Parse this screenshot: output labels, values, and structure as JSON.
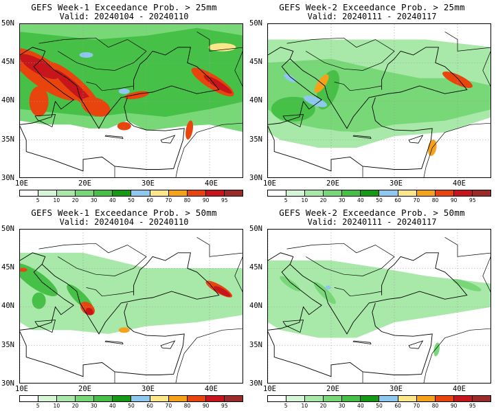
{
  "panels": [
    {
      "title": "GEFS Week-1 Exceedance Prob. > 25mm",
      "valid": "Valid: 20240104 - 20240110",
      "lat_labels": [
        "50N",
        "45N",
        "40N",
        "35N",
        "30N"
      ],
      "lon_labels": [
        "10E",
        "20E",
        "30E",
        "40E"
      ],
      "colorbar_labels": [
        "5",
        "10",
        "20",
        "30",
        "40",
        "50",
        "60",
        "70",
        "80",
        "90",
        "95"
      ]
    },
    {
      "title": "GEFS Week-2 Exceedance Prob. > 25mm",
      "valid": "Valid: 20240111 - 20240117",
      "lat_labels": [
        "50N",
        "45N",
        "40N",
        "35N",
        "30N"
      ],
      "lon_labels": [
        "10E",
        "20E",
        "30E",
        "40E"
      ],
      "colorbar_labels": [
        "5",
        "10",
        "20",
        "30",
        "40",
        "50",
        "60",
        "70",
        "80",
        "90",
        "95"
      ]
    },
    {
      "title": "GEFS Week-1 Exceedance Prob. > 50mm",
      "valid": "Valid: 20240104 - 20240110",
      "lat_labels": [
        "50N",
        "45N",
        "40N",
        "35N",
        "30N"
      ],
      "lon_labels": [
        "10E",
        "20E",
        "30E",
        "40E"
      ],
      "colorbar_labels": [
        "5",
        "10",
        "20",
        "30",
        "40",
        "50",
        "60",
        "70",
        "80",
        "90",
        "95"
      ]
    },
    {
      "title": "GEFS Week-2 Exceedance Prob. > 50mm",
      "valid": "Valid: 20240111 - 20240117",
      "lat_labels": [
        "50N",
        "45N",
        "40N",
        "35N",
        "30N"
      ],
      "lon_labels": [
        "10E",
        "20E",
        "30E",
        "40E"
      ],
      "colorbar_labels": [
        "5",
        "10",
        "20",
        "30",
        "40",
        "50",
        "60",
        "70",
        "80",
        "90",
        "95"
      ]
    }
  ],
  "colorbar_colors": [
    "#ffffff",
    "#d6f5d6",
    "#a8e8a8",
    "#78d878",
    "#46c046",
    "#159a15",
    "#8ec8ee",
    "#fbe68a",
    "#f4a21a",
    "#e8450e",
    "#c7161b",
    "#9b2a2a"
  ]
}
